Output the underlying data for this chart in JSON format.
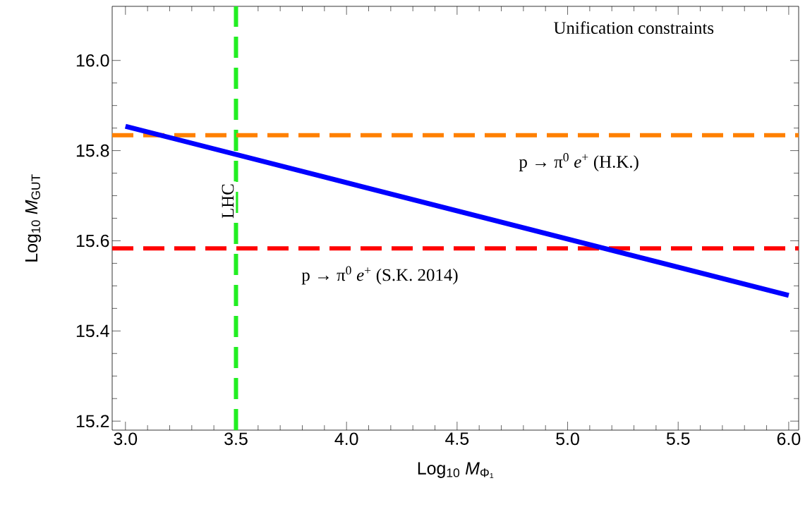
{
  "chart_data": {
    "type": "line",
    "xlabel": "Log$_{10}$ *M*$_{Φ₁}$",
    "ylabel": "Log$_{10}$ *M*$_{GUT}$",
    "xlim": [
      2.94,
      6.045
    ],
    "ylim": [
      15.18,
      16.12
    ],
    "xticks": [
      {
        "value": 3,
        "label": "3.0"
      },
      3.5,
      {
        "value": 4,
        "label": "4.0"
      },
      4.5,
      {
        "value": 5,
        "label": "5.0"
      },
      5.5,
      {
        "value": 6,
        "label": "6.0"
      }
    ],
    "yticks": [
      15.2,
      15.4,
      15.6,
      15.8,
      {
        "value": 16,
        "label": "16.0"
      }
    ],
    "series": [
      {
        "color": "#0000ff",
        "x": [
          3.0,
          6.0
        ],
        "values": [
          15.854,
          15.479
        ]
      }
    ],
    "ref_lines": [
      {
        "axis": "x",
        "value": 3.5,
        "label": "LHC",
        "color": "#22ee22",
        "line_style": "dashed"
      },
      {
        "axis": "y",
        "value": 15.834,
        "label": "p → π$^{0}$ *e*$^{+}$  (H.K.)",
        "color": "#ff8000",
        "line_style": "dashed"
      },
      {
        "axis": "y",
        "value": 15.583,
        "label": "p → π$^{0}$ *e*$^{+}$  (S.K. 2014)",
        "color": "#ff0000",
        "line_style": "dashed"
      }
    ],
    "annotations": [
      "Unification constraints"
    ]
  }
}
